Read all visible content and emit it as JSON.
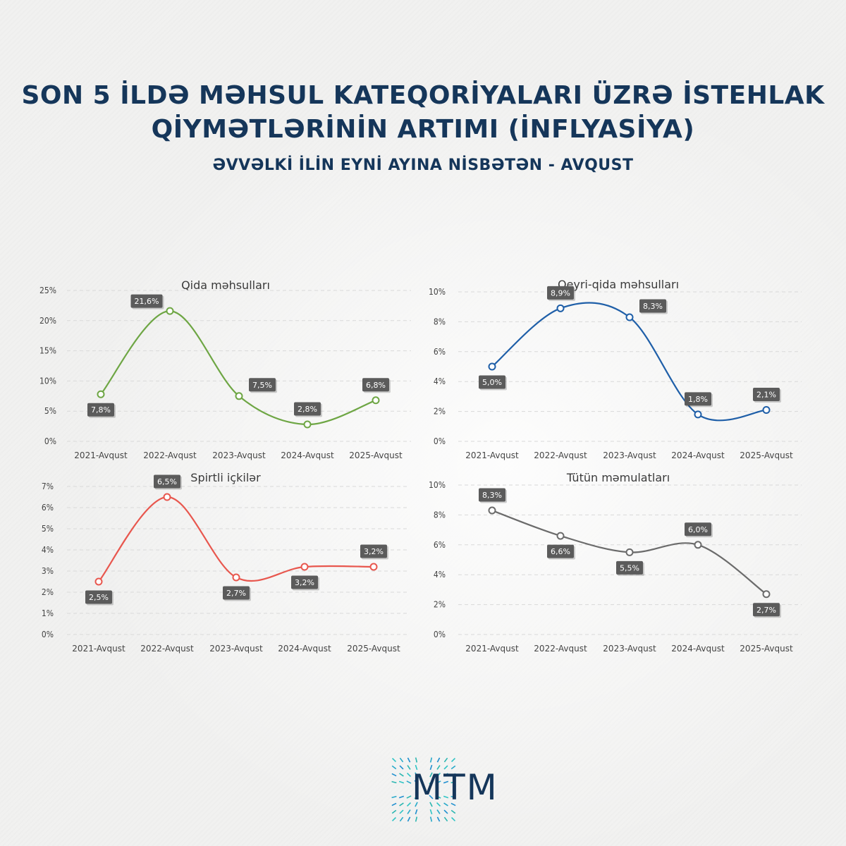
{
  "header": {
    "title_line1": "SON 5 İLDƏ MƏHSUL KATEQORİYALARI ÜZRƏ İSTEHLAK",
    "title_line2": "QİYMƏTLƏRİNİN ARTIMI (İNFLYASİYA)",
    "subtitle": "ƏVVƏLKİ İLİN EYNİ AYINA NİSBƏTƏN - AVQUST"
  },
  "logo": {
    "text": "MTM",
    "icon": "mtm-logo-icon",
    "color": "#15365a"
  },
  "chart_data": [
    {
      "type": "line",
      "title": "Qida məhsulları",
      "categories": [
        "2021-Avqust",
        "2022-Avqust",
        "2023-Avqust",
        "2024-Avqust",
        "2025-Avqust"
      ],
      "values": [
        7.8,
        21.6,
        7.5,
        2.8,
        6.8
      ],
      "labels": [
        "7,8%",
        "21,6%",
        "7,5%",
        "2,8%",
        "6,8%"
      ],
      "yticks": [
        "0%",
        "5%",
        "10%",
        "15%",
        "20%",
        "25%"
      ],
      "ylim": [
        0,
        25
      ],
      "color": "#6ea644",
      "grid": true
    },
    {
      "type": "line",
      "title": "Qeyri-qida məhsulları",
      "categories": [
        "2021-Avqust",
        "2022-Avqust",
        "2023-Avqust",
        "2024-Avqust",
        "2025-Avqust"
      ],
      "values": [
        5.0,
        8.9,
        8.3,
        1.8,
        2.1
      ],
      "labels": [
        "5,0%",
        "8,9%",
        "8,3%",
        "1,8%",
        "2,1%"
      ],
      "yticks": [
        "0%",
        "2%",
        "4%",
        "6%",
        "8%",
        "10%"
      ],
      "ylim": [
        0,
        10
      ],
      "color": "#1f5fa8",
      "grid": true
    },
    {
      "type": "line",
      "title": "Spirtli içkilər",
      "categories": [
        "2021-Avqust",
        "2022-Avqust",
        "2023-Avqust",
        "2024-Avqust",
        "2025-Avqust"
      ],
      "values": [
        2.5,
        6.5,
        2.7,
        3.2,
        3.2
      ],
      "labels": [
        "2,5%",
        "6,5%",
        "2,7%",
        "3,2%",
        "3,2%"
      ],
      "yticks": [
        "0%",
        "1%",
        "2%",
        "3%",
        "4%",
        "5%",
        "6%",
        "7%"
      ],
      "ylim": [
        0,
        7
      ],
      "color": "#e8574e",
      "grid": true
    },
    {
      "type": "line",
      "title": "Tütün məmulatları",
      "categories": [
        "2021-Avqust",
        "2022-Avqust",
        "2023-Avqust",
        "2024-Avqust",
        "2025-Avqust"
      ],
      "values": [
        8.3,
        6.6,
        5.5,
        6.0,
        2.7
      ],
      "labels": [
        "8,3%",
        "6,6%",
        "5,5%",
        "6,0%",
        "2,7%"
      ],
      "yticks": [
        "0%",
        "2%",
        "4%",
        "6%",
        "8%",
        "10%"
      ],
      "ylim": [
        0,
        10
      ],
      "color": "#6b6b6b",
      "grid": true
    }
  ]
}
